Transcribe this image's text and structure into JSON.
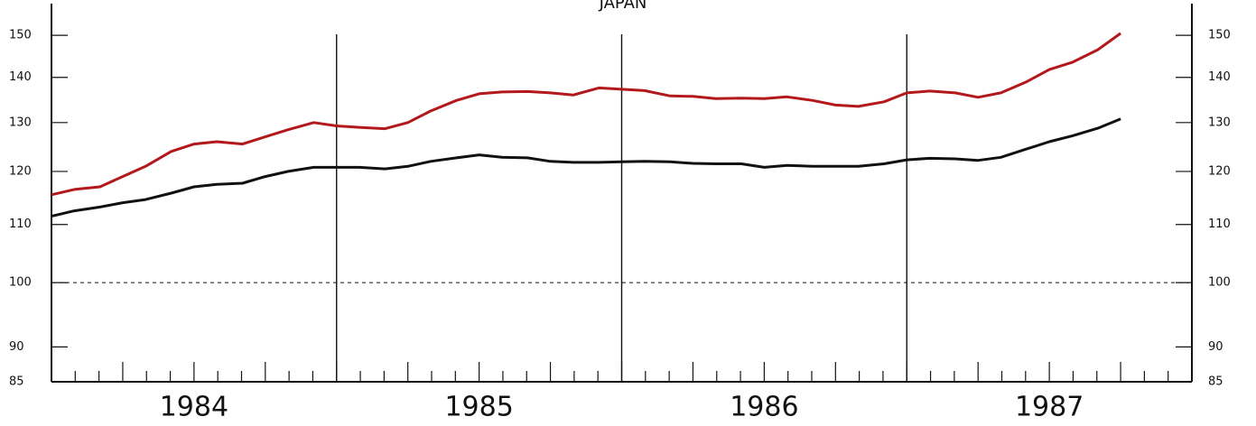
{
  "chart_data": {
    "type": "line",
    "title": "JAPAN",
    "x": [
      1984.0,
      1984.08,
      1984.17,
      1984.25,
      1984.33,
      1984.42,
      1984.5,
      1984.58,
      1984.67,
      1984.75,
      1984.83,
      1984.92,
      1985.0,
      1985.08,
      1985.17,
      1985.25,
      1985.33,
      1985.42,
      1985.5,
      1985.58,
      1985.67,
      1985.75,
      1985.83,
      1985.92,
      1986.0,
      1986.08,
      1986.17,
      1986.25,
      1986.33,
      1986.42,
      1986.5,
      1986.58,
      1986.67,
      1986.75,
      1986.83,
      1986.92,
      1987.0,
      1987.08,
      1987.17,
      1987.25,
      1987.33,
      1987.42,
      1987.5,
      1987.58,
      1987.67,
      1987.75
    ],
    "series": [
      {
        "color": "#b3191c",
        "values": [
          115.5,
          116.5,
          117,
          119,
          121,
          124,
          125.5,
          126,
          125.5,
          127,
          128.5,
          130,
          129.3,
          129,
          128.7,
          130,
          132.5,
          134.8,
          136.3,
          136.7,
          136.8,
          136.5,
          136,
          137.6,
          137.3,
          137,
          135.8,
          135.7,
          135.2,
          135.3,
          135.2,
          135.6,
          134.8,
          133.8,
          133.5,
          134.5,
          136.5,
          136.9,
          136.5,
          135.5,
          136.5,
          139,
          141.8,
          143.5,
          146.5,
          150.5
        ]
      },
      {
        "color": "#111111",
        "values": [
          111.5,
          112.5,
          113.2,
          114,
          114.6,
          115.8,
          117,
          117.5,
          117.7,
          119,
          120,
          120.8,
          120.8,
          120.8,
          120.5,
          121,
          122,
          122.7,
          123.3,
          122.8,
          122.7,
          122,
          121.8,
          121.8,
          121.9,
          122,
          121.9,
          121.6,
          121.5,
          121.5,
          120.8,
          121.2,
          121,
          121,
          121,
          121.5,
          122.3,
          122.6,
          122.5,
          122.2,
          122.8,
          124.5,
          126,
          127.2,
          128.8,
          130.8
        ]
      }
    ],
    "xlim": [
      1984,
      1988
    ],
    "xticks": [
      {
        "value": 1984.5,
        "label": "1984"
      },
      {
        "value": 1985.5,
        "label": "1985"
      },
      {
        "value": 1986.5,
        "label": "1986"
      },
      {
        "value": 1987.5,
        "label": "1987"
      }
    ],
    "vlines": [
      1985,
      1986,
      1987
    ],
    "ylim": [
      85,
      158
    ],
    "log_y": true,
    "yticks": [
      85,
      90,
      100,
      110,
      120,
      130,
      140,
      150
    ],
    "dashed_hline": 100
  }
}
